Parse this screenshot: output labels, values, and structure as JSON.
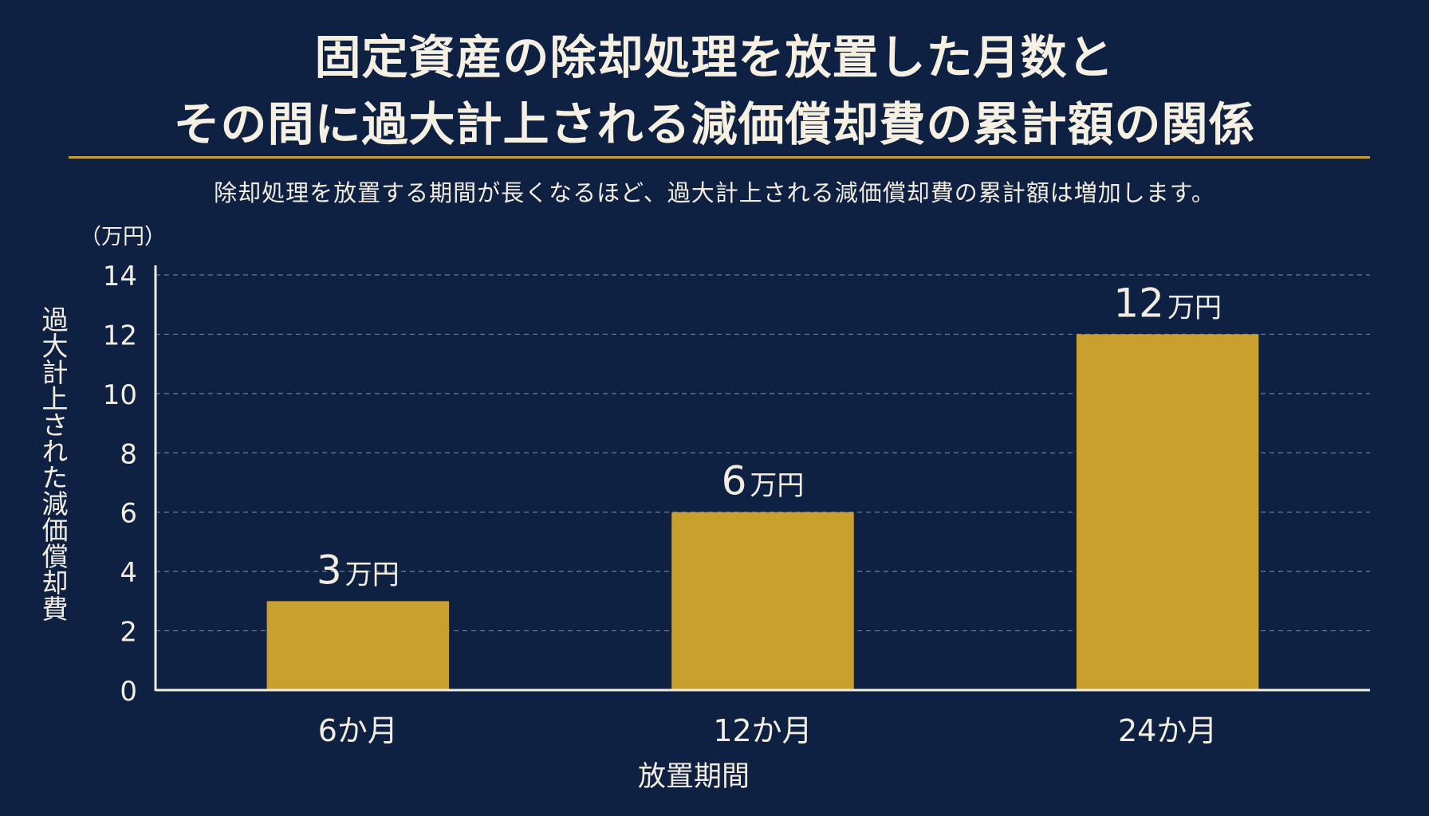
{
  "header": {
    "title_line1": "固定資産の除却処理を放置した月数と",
    "title_line2": "その間に過大計上される減価償却費の累計額の関係",
    "subtitle": "除却処理を放置する期間が長くなるほど、過大計上される減価償却費の累計額は増加します。"
  },
  "colors": {
    "background": "#0e2142",
    "bar": "#c9a02e",
    "accent_rule": "#caa036",
    "text": "#f3ede0"
  },
  "chart_data": {
    "type": "bar",
    "title": "固定資産の除却処理を放置した月数と その間に過大計上される減価償却費の累計額の関係",
    "subtitle": "除却処理を放置する期間が長くなるほど、過大計上される減価償却費の累計額は増加します。",
    "categories": [
      "6か月",
      "12か月",
      "24か月"
    ],
    "values": [
      3,
      6,
      12
    ],
    "data_labels": [
      {
        "number": "3",
        "unit": "万円"
      },
      {
        "number": "6",
        "unit": "万円"
      },
      {
        "number": "12",
        "unit": "万円"
      }
    ],
    "xlabel": "放置期間",
    "ylabel": "過大計上された減価償却費",
    "yunit": "（万円）",
    "ylim": [
      0,
      14
    ],
    "yticks": [
      0,
      2,
      4,
      6,
      8,
      10,
      12,
      14
    ],
    "grid": true,
    "legend": "none"
  }
}
